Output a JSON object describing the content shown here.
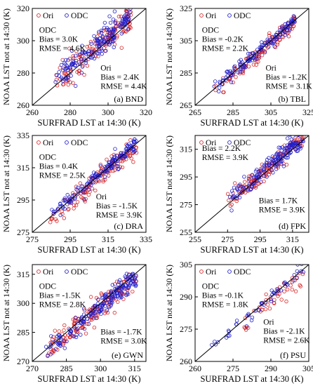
{
  "figure_labels": {
    "ylabel": "NOAA LST not at 14:30 (K)",
    "xlabel": "SURFRAD LST at 14:30 (K)"
  },
  "chart_data": [
    {
      "type": "scatter",
      "site": "BND",
      "panel_label": "(a) BND",
      "xlim": [
        260,
        320
      ],
      "ylim": [
        260,
        320
      ],
      "xticks": [
        260,
        280,
        300,
        320
      ],
      "yticks": [
        260,
        280,
        300,
        320
      ],
      "legend": [
        "Ori",
        "ODC"
      ],
      "odc_stats": {
        "title": "ODC",
        "bias": "Bias = 3.0K",
        "rmse": "RMSE = 4.6K"
      },
      "ori_stats": {
        "title": "Ori",
        "bias": "Bias = 2.4K",
        "rmse": "RMSE = 4.4K"
      },
      "series": [
        {
          "name": "Ori",
          "color": "#d62728",
          "cluster": {
            "x_range": [
              272,
              312
            ],
            "offset": 2.4,
            "spread": 4.0,
            "n": 150
          }
        },
        {
          "name": "ODC",
          "color": "#1f1fcc",
          "cluster": {
            "x_range": [
              272,
              312
            ],
            "offset": 3.0,
            "spread": 4.2,
            "n": 170
          }
        }
      ],
      "grid": false
    },
    {
      "type": "scatter",
      "site": "TBL",
      "panel_label": "(b) TBL",
      "xlim": [
        265,
        325
      ],
      "ylim": [
        265,
        325
      ],
      "xticks": [
        265,
        285,
        305,
        325
      ],
      "yticks": [
        265,
        285,
        305,
        325
      ],
      "legend": [
        "Ori",
        "ODC"
      ],
      "odc_stats": {
        "title": "ODC",
        "bias": "Bias = -0.2K",
        "rmse": "RMSE = 2.2K"
      },
      "ori_stats": {
        "title": "Ori",
        "bias": "Bias = -1.2K",
        "rmse": "RMSE = 3.1K"
      },
      "series": [
        {
          "name": "Ori",
          "color": "#d62728",
          "cluster": {
            "x_range": [
              275,
              318
            ],
            "offset": -1.2,
            "spread": 2.8,
            "n": 120
          }
        },
        {
          "name": "ODC",
          "color": "#1f1fcc",
          "cluster": {
            "x_range": [
              275,
              318
            ],
            "offset": -0.2,
            "spread": 2.0,
            "n": 130
          }
        }
      ],
      "grid": false
    },
    {
      "type": "scatter",
      "site": "DRA",
      "panel_label": "(c) DRA",
      "xlim": [
        275,
        335
      ],
      "ylim": [
        275,
        335
      ],
      "xticks": [
        275,
        295,
        315,
        335
      ],
      "yticks": [
        275,
        295,
        315,
        335
      ],
      "legend": [
        "Ori",
        "ODC"
      ],
      "odc_stats": {
        "title": "ODC",
        "bias": "Bias = 0.4K",
        "rmse": "RMSE = 2.5K"
      },
      "ori_stats": {
        "title": "Ori",
        "bias": "Bias = -1.5K",
        "rmse": "RMSE = 3.9K"
      },
      "series": [
        {
          "name": "Ori",
          "color": "#d62728",
          "cluster": {
            "x_range": [
              284,
              330
            ],
            "offset": -1.5,
            "spread": 3.5,
            "n": 140
          }
        },
        {
          "name": "ODC",
          "color": "#1f1fcc",
          "cluster": {
            "x_range": [
              284,
              330
            ],
            "offset": 0.4,
            "spread": 2.3,
            "n": 150
          }
        }
      ],
      "grid": false
    },
    {
      "type": "scatter",
      "site": "FPK",
      "panel_label": "(d) FPK",
      "xlim": [
        255,
        325
      ],
      "ylim": [
        255,
        325
      ],
      "xticks": [
        255,
        275,
        295,
        315
      ],
      "yticks": [
        255,
        275,
        295,
        315
      ],
      "legend": [
        "Ori",
        "ODC"
      ],
      "odc_stats": {
        "title": "",
        "bias": "Bias = 2.2K",
        "rmse": "RMSE = 3.9K"
      },
      "ori_stats": {
        "title": "",
        "bias": "Bias = 1.7K",
        "rmse": "RMSE = 3.9K"
      },
      "series": [
        {
          "name": "Ori",
          "color": "#d62728",
          "cluster": {
            "x_range": [
              275,
              322
            ],
            "offset": 1.7,
            "spread": 3.6,
            "n": 150
          }
        },
        {
          "name": "ODC",
          "color": "#1f1fcc",
          "cluster": {
            "x_range": [
              275,
              322
            ],
            "offset": 2.2,
            "spread": 3.6,
            "n": 170
          }
        }
      ],
      "grid": false
    },
    {
      "type": "scatter",
      "site": "GWN",
      "panel_label": "(e) GWN",
      "xlim": [
        270,
        320
      ],
      "ylim": [
        270,
        320
      ],
      "xticks": [
        270,
        285,
        300,
        315
      ],
      "yticks": [
        270,
        285,
        300,
        315
      ],
      "legend": [
        "Ori",
        "ODC"
      ],
      "odc_stats": {
        "title": "ODC",
        "bias": "Bias = -1.5K",
        "rmse": "RMSE = 2.8K"
      },
      "ori_stats": {
        "title": "",
        "bias": "Bias = -1.7K",
        "rmse": "RMSE = 3.0K"
      },
      "series": [
        {
          "name": "Ori",
          "color": "#d62728",
          "cluster": {
            "x_range": [
              276,
              316
            ],
            "offset": -1.7,
            "spread": 2.8,
            "n": 170
          }
        },
        {
          "name": "ODC",
          "color": "#1f1fcc",
          "cluster": {
            "x_range": [
              276,
              316
            ],
            "offset": -1.5,
            "spread": 2.6,
            "n": 190
          }
        }
      ],
      "grid": false
    },
    {
      "type": "scatter",
      "site": "PSU",
      "panel_label": "(f) PSU",
      "xlim": [
        260,
        305
      ],
      "ylim": [
        260,
        305
      ],
      "xticks": [
        260,
        275,
        290,
        305
      ],
      "yticks": [
        260,
        275,
        290,
        305
      ],
      "legend": [
        "Ori",
        "ODC"
      ],
      "odc_stats": {
        "title": "ODC",
        "bias": "Bias = -0.1K",
        "rmse": "RMSE = 1.8K"
      },
      "ori_stats": {
        "title": "Ori",
        "bias": "Bias = -2.1K",
        "rmse": "RMSE = 2.6K"
      },
      "series": [
        {
          "name": "Ori",
          "color": "#d62728",
          "cluster": {
            "x_range": [
              278,
              303
            ],
            "offset": -2.1,
            "spread": 2.2,
            "n": 45
          }
        },
        {
          "name": "ODC",
          "color": "#1f1fcc",
          "cluster": {
            "x_range": [
              266,
              303
            ],
            "offset": -0.1,
            "spread": 1.6,
            "n": 50
          }
        }
      ],
      "grid": false
    }
  ]
}
